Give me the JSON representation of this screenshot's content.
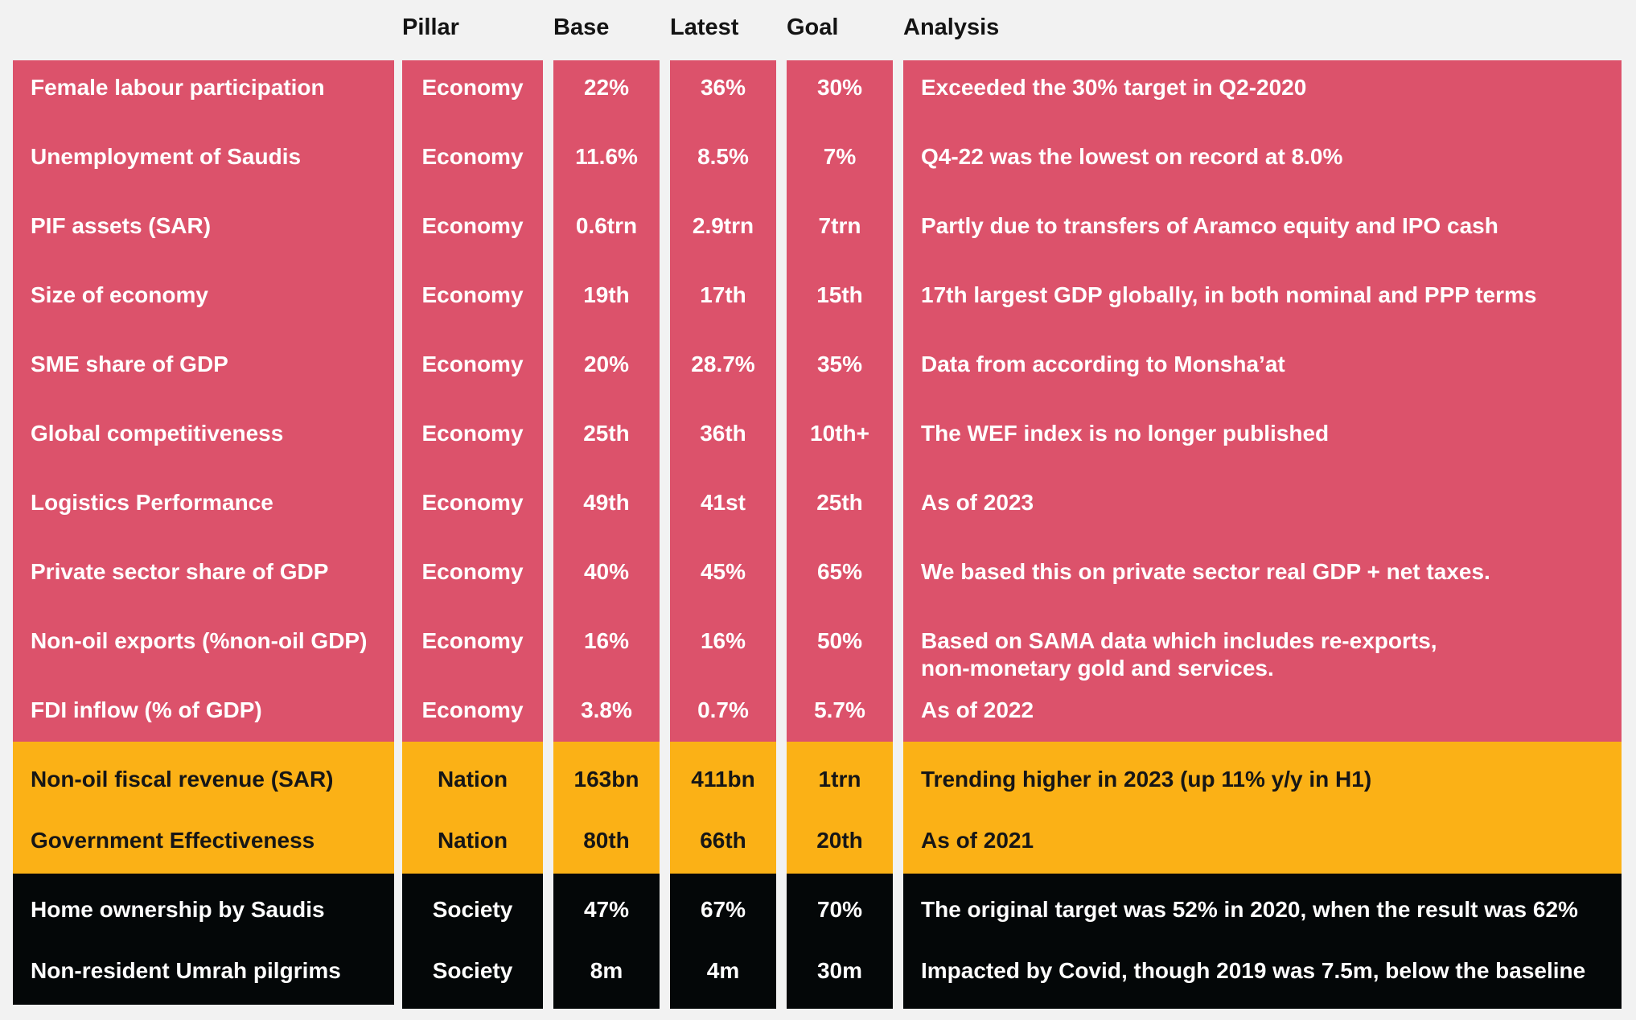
{
  "headers": {
    "pillar": "Pillar",
    "base": "Base",
    "latest": "Latest",
    "goal": "Goal",
    "analysis": "Analysis"
  },
  "colors": {
    "economy": "#dc526b",
    "nation": "#fbb116",
    "society": "#040708",
    "background": "#f2f2f2"
  },
  "rows": [
    {
      "metric": "Female labour participation",
      "pillar": "Economy",
      "base": "22%",
      "latest": "36%",
      "goal": "30%",
      "analysis": "Exceeded the 30% target in Q2-2020"
    },
    {
      "metric": "Unemployment of Saudis",
      "pillar": "Economy",
      "base": "11.6%",
      "latest": "8.5%",
      "goal": "7%",
      "analysis": "Q4-22 was the lowest on record at 8.0%"
    },
    {
      "metric": "PIF assets (SAR)",
      "pillar": "Economy",
      "base": "0.6trn",
      "latest": "2.9trn",
      "goal": "7trn",
      "analysis": "Partly due to transfers of Aramco equity and IPO cash"
    },
    {
      "metric": "Size of economy",
      "pillar": "Economy",
      "base": "19th",
      "latest": "17th",
      "goal": "15th",
      "analysis": "17th largest GDP globally, in both nominal and PPP terms"
    },
    {
      "metric": "SME share of GDP",
      "pillar": "Economy",
      "base": "20%",
      "latest": "28.7%",
      "goal": "35%",
      "analysis": "Data from according to Monsha’at"
    },
    {
      "metric": "Global competitiveness",
      "pillar": "Economy",
      "base": "25th",
      "latest": "36th",
      "goal": "10th+",
      "analysis": "The WEF index is no longer published"
    },
    {
      "metric": "Logistics Performance",
      "pillar": "Economy",
      "base": "49th",
      "latest": "41st",
      "goal": "25th",
      "analysis": "As of 2023"
    },
    {
      "metric": "Private sector share of GDP",
      "pillar": "Economy",
      "base": "40%",
      "latest": "45%",
      "goal": "65%",
      "analysis": "We based this on private sector real GDP + net taxes."
    },
    {
      "metric": "Non-oil exports (%non-oil GDP)",
      "pillar": "Economy",
      "base": "16%",
      "latest": "16%",
      "goal": "50%",
      "analysis": "Based on SAMA data which includes re-exports, non-monetary gold and services."
    },
    {
      "metric": "FDI inflow (% of GDP)",
      "pillar": "Economy",
      "base": "3.8%",
      "latest": "0.7%",
      "goal": "5.7%",
      "analysis": "As of 2022"
    },
    {
      "metric": "Non-oil fiscal revenue (SAR)",
      "pillar": "Nation",
      "base": "163bn",
      "latest": "411bn",
      "goal": "1trn",
      "analysis": "Trending higher in 2023 (up 11% y/y in H1)"
    },
    {
      "metric": "Government Effectiveness",
      "pillar": "Nation",
      "base": "80th",
      "latest": "66th",
      "goal": "20th",
      "analysis": "As of 2021"
    },
    {
      "metric": "Home ownership by Saudis",
      "pillar": "Society",
      "base": "47%",
      "latest": "67%",
      "goal": "70%",
      "analysis": "The original target was 52% in 2020, when the result was 62%"
    },
    {
      "metric": "Non-resident Umrah pilgrims",
      "pillar": "Society",
      "base": "8m",
      "latest": "4m",
      "goal": "30m",
      "analysis": "Impacted by Covid, though 2019 was 7.5m, below the baseline"
    }
  ]
}
